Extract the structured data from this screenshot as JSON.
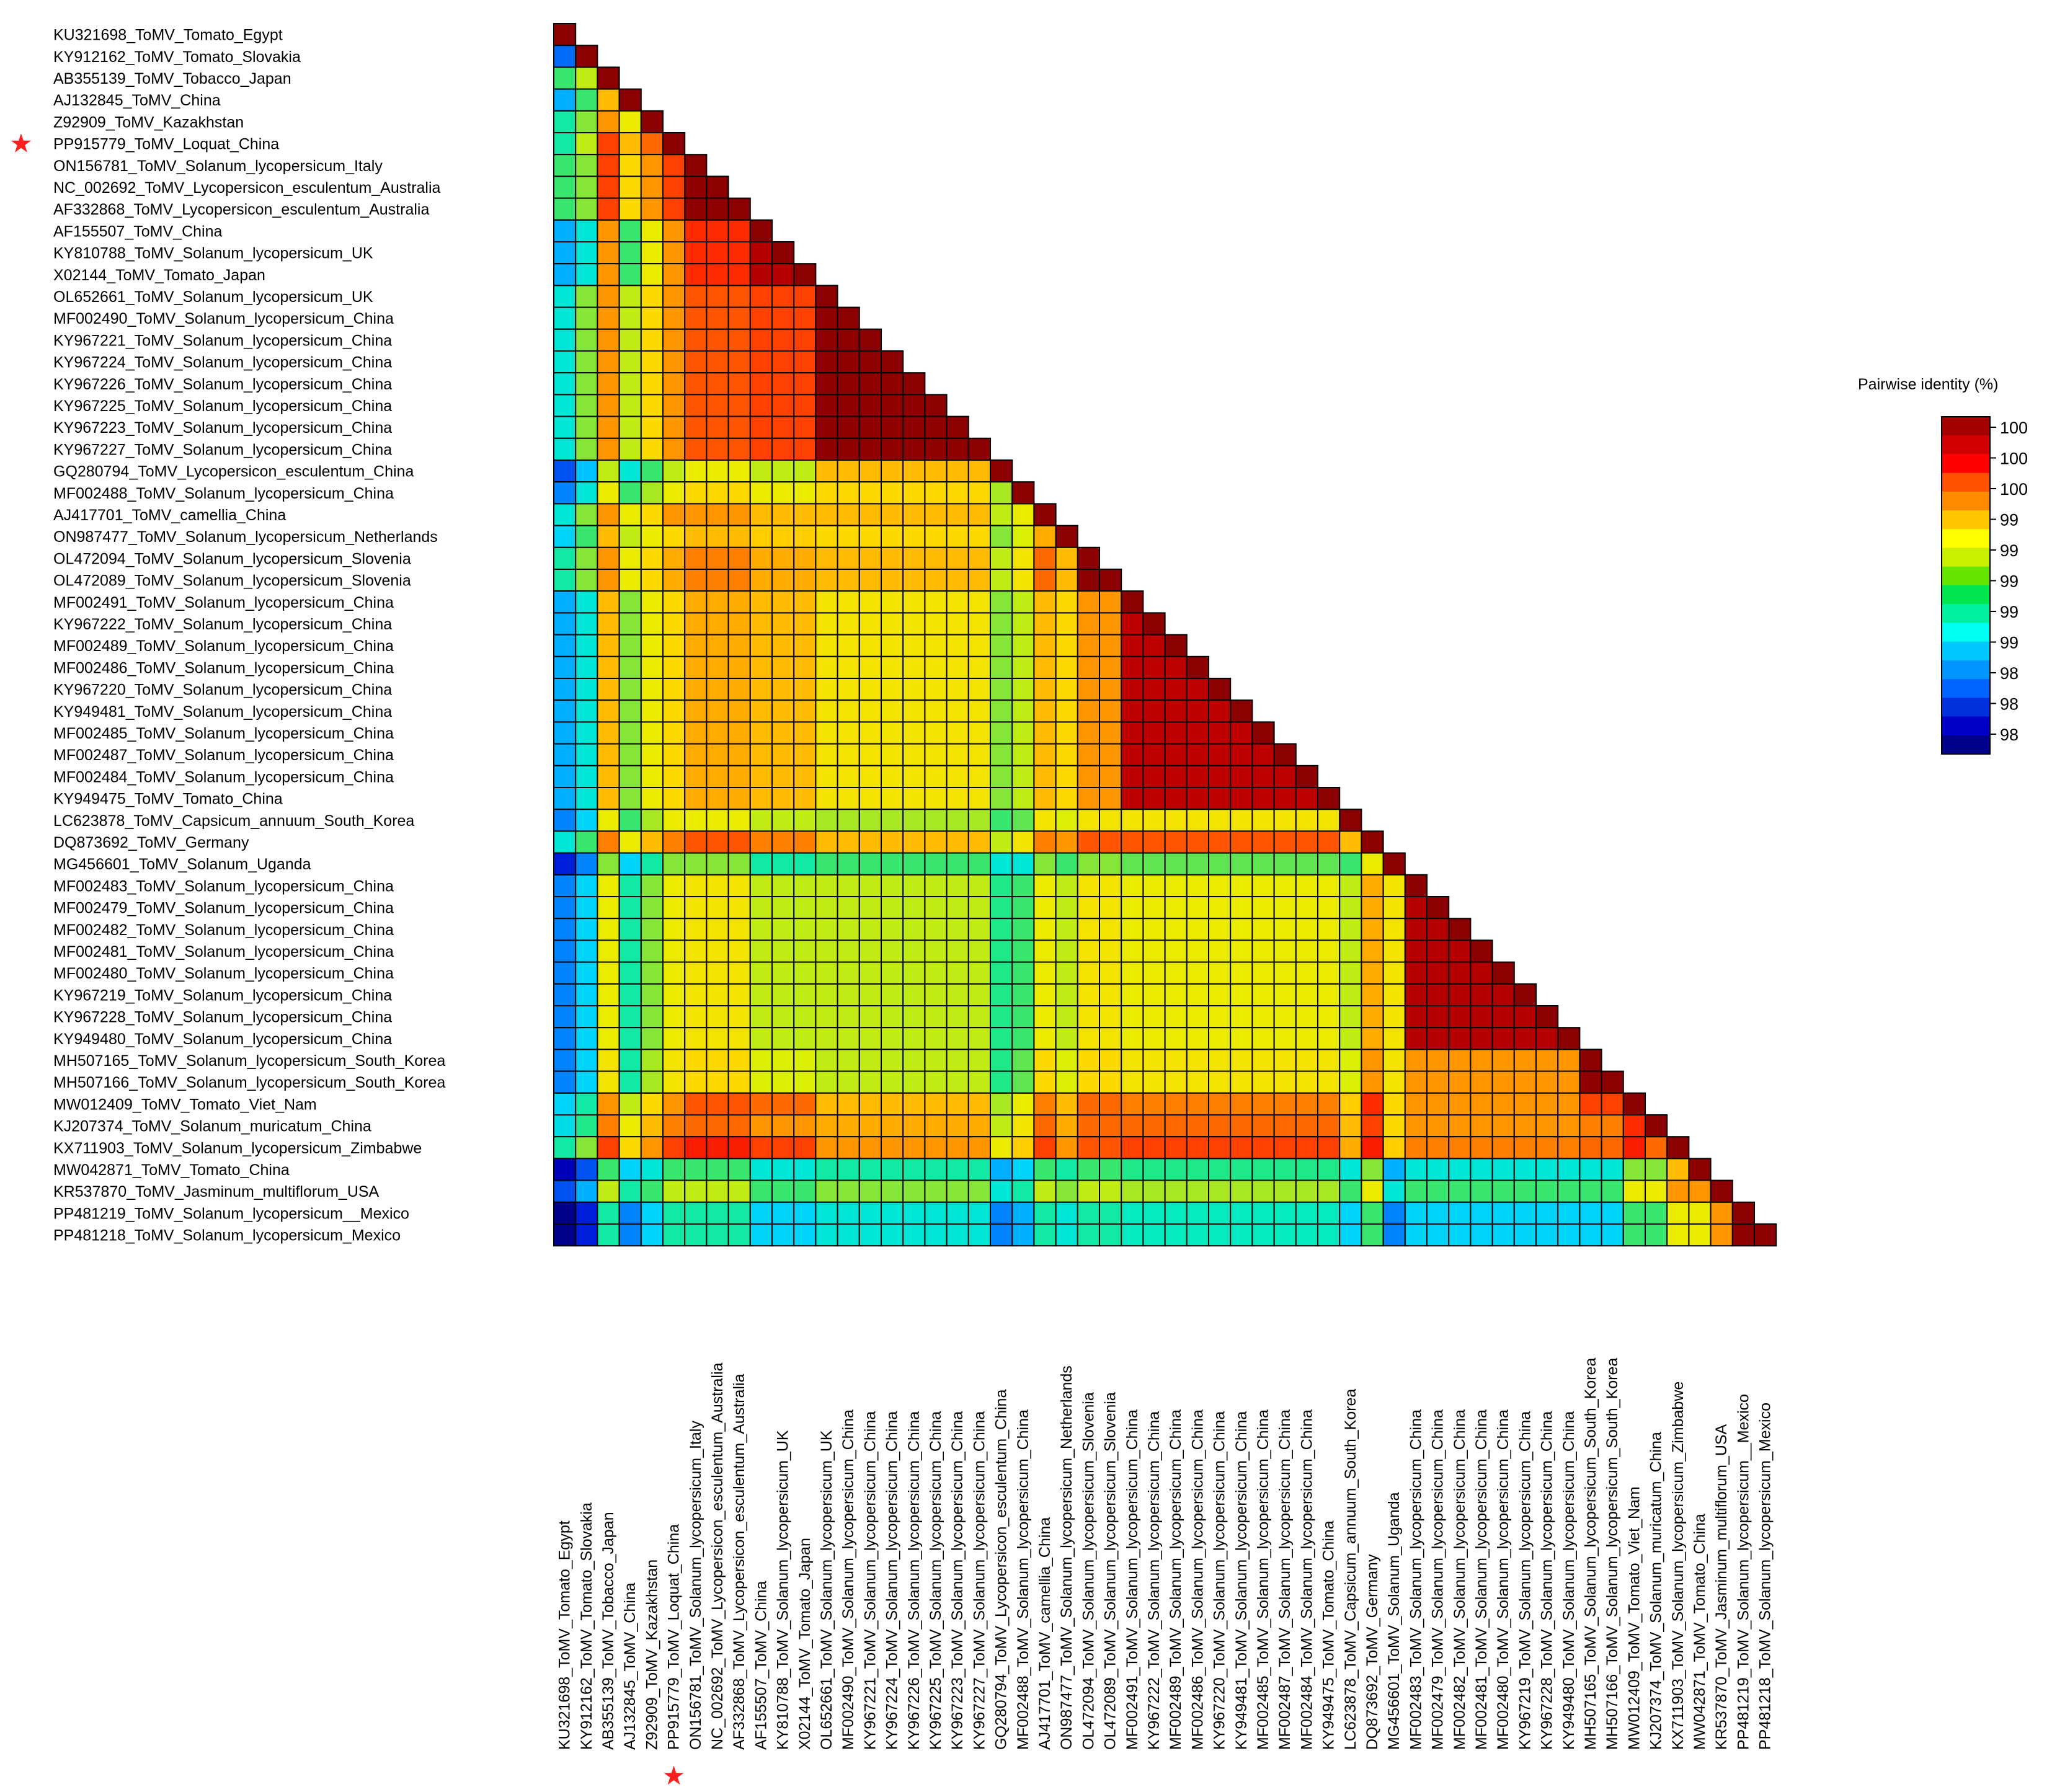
{
  "chart_data": {
    "type": "heatmap",
    "title": "",
    "value_label": "Pairwise identity (%)",
    "layout": "lower-triangle",
    "diagonal_value": 100,
    "highlight_marker": "★",
    "highlight_color": "#ff1f1f",
    "highlighted_label_index": 5,
    "labels": [
      "KU321698_ToMV_Tomato_Egypt",
      "KY912162_ToMV_Tomato_Slovakia",
      "AB355139_ToMV_Tobacco_Japan",
      "AJ132845_ToMV_China",
      "Z92909_ToMV_Kazakhstan",
      "PP915779_ToMV_Loquat_China",
      "ON156781_ToMV_Solanum_lycopersicum_Italy",
      "NC_002692_ToMV_Lycopersicon_esculentum_Australia",
      "AF332868_ToMV_Lycopersicon_esculentum_Australia",
      "AF155507_ToMV_China",
      "KY810788_ToMV_Solanum_lycopersicum_UK",
      "X02144_ToMV_Tomato_Japan",
      "OL652661_ToMV_Solanum_lycopersicum_UK",
      "MF002490_ToMV_Solanum_lycopersicum_China",
      "KY967221_ToMV_Solanum_lycopersicum_China",
      "KY967224_ToMV_Solanum_lycopersicum_China",
      "KY967226_ToMV_Solanum_lycopersicum_China",
      "KY967225_ToMV_Solanum_lycopersicum_China",
      "KY967223_ToMV_Solanum_lycopersicum_China",
      "KY967227_ToMV_Solanum_lycopersicum_China",
      "GQ280794_ToMV_Lycopersicon_esculentum_China",
      "MF002488_ToMV_Solanum_lycopersicum_China",
      "AJ417701_ToMV_camellia_China",
      "ON987477_ToMV_Solanum_lycopersicum_Netherlands",
      "OL472094_ToMV_Solanum_lycopersicum_Slovenia",
      "OL472089_ToMV_Solanum_lycopersicum_Slovenia",
      "MF002491_ToMV_Solanum_lycopersicum_China",
      "KY967222_ToMV_Solanum_lycopersicum_China",
      "MF002489_ToMV_Solanum_lycopersicum_China",
      "MF002486_ToMV_Solanum_lycopersicum_China",
      "KY967220_ToMV_Solanum_lycopersicum_China",
      "KY949481_ToMV_Solanum_lycopersicum_China",
      "MF002485_ToMV_Solanum_lycopersicum_China",
      "MF002487_ToMV_Solanum_lycopersicum_China",
      "MF002484_ToMV_Solanum_lycopersicum_China",
      "KY949475_ToMV_Tomato_China",
      "LC623878_ToMV_Capsicum_annuum_South_Korea",
      "DQ873692_ToMV_Germany",
      "MG456601_ToMV_Solanum_Uganda",
      "MF002483_ToMV_Solanum_lycopersicum_China",
      "MF002479_ToMV_Solanum_lycopersicum_China",
      "MF002482_ToMV_Solanum_lycopersicum_China",
      "MF002481_ToMV_Solanum_lycopersicum_China",
      "MF002480_ToMV_Solanum_lycopersicum_China",
      "KY967219_ToMV_Solanum_lycopersicum_China",
      "KY967228_ToMV_Solanum_lycopersicum_China",
      "KY949480_ToMV_Solanum_lycopersicum_China",
      "MH507165_ToMV_Solanum_lycopersicum_South_Korea",
      "MH507166_ToMV_Solanum_lycopersicum_South_Korea",
      "MW012409_ToMV_Tomato_Viet_Nam",
      "KJ207374_ToMV_Solanum_muricatum_China",
      "KX711903_ToMV_Solanum_lycopersicum_Zimbabwe",
      "MW042871_ToMV_Tomato_China",
      "KR537870_ToMV_Jasminum_multiflorum_USA",
      "PP481219_ToMV_Solanum_lycopersicum__Mexico",
      "PP481218_ToMV_Solanum_lycopersicum_Mexico"
    ],
    "groups": [
      0,
      1,
      2,
      3,
      4,
      5,
      6,
      6,
      6,
      7,
      7,
      7,
      8,
      8,
      8,
      8,
      8,
      8,
      8,
      8,
      9,
      10,
      11,
      12,
      13,
      13,
      14,
      14,
      14,
      14,
      14,
      14,
      14,
      14,
      14,
      14,
      15,
      16,
      17,
      18,
      18,
      18,
      18,
      18,
      18,
      18,
      18,
      19,
      19,
      20,
      21,
      22,
      23,
      24,
      25,
      25
    ],
    "group_matrix": [
      [
        100,
        98.15,
        98.7,
        98.3,
        98.6,
        98.6,
        98.7,
        98.3,
        98.5,
        98.1,
        98.2,
        98.5,
        98.4,
        98.6,
        98.3,
        98.2,
        98.5,
        98.0,
        98.2,
        98.2,
        98.4,
        98.45,
        98.6,
        97.9,
        98.1,
        97.8
      ],
      [
        98.15,
        100,
        98.9,
        98.7,
        98.8,
        98.9,
        98.8,
        98.5,
        98.8,
        98.35,
        98.5,
        98.8,
        98.7,
        98.8,
        98.5,
        98.4,
        98.7,
        98.2,
        98.4,
        98.4,
        98.6,
        98.65,
        98.8,
        98.1,
        98.3,
        98.0
      ],
      [
        98.7,
        98.9,
        100,
        99.2,
        99.3,
        99.5,
        99.5,
        99.3,
        99.3,
        98.9,
        99.0,
        99.3,
        99.2,
        99.3,
        99.2,
        99.0,
        99.35,
        98.8,
        99.0,
        99.05,
        99.3,
        99.35,
        99.5,
        98.7,
        98.9,
        98.6
      ],
      [
        98.3,
        98.7,
        99.2,
        100,
        99.0,
        99.2,
        99.1,
        98.7,
        98.9,
        98.5,
        98.7,
        99.0,
        98.9,
        99.0,
        98.8,
        98.7,
        99.0,
        98.4,
        98.6,
        98.6,
        98.9,
        99.0,
        99.1,
        98.4,
        98.6,
        98.2
      ],
      [
        98.6,
        98.8,
        99.3,
        99.0,
        100,
        99.4,
        99.3,
        99.0,
        99.1,
        98.7,
        98.85,
        99.1,
        99.0,
        99.1,
        99.0,
        98.85,
        99.2,
        98.6,
        98.8,
        98.85,
        99.1,
        99.2,
        99.3,
        98.5,
        98.7,
        98.4
      ],
      [
        98.6,
        98.9,
        99.5,
        99.2,
        99.4,
        100,
        99.5,
        99.3,
        99.3,
        98.9,
        99.0,
        99.3,
        99.1,
        99.25,
        99.1,
        99.0,
        99.35,
        98.8,
        99.0,
        99.05,
        99.3,
        99.35,
        99.5,
        98.7,
        98.9,
        98.6
      ],
      [
        98.7,
        98.8,
        99.5,
        99.1,
        99.3,
        99.5,
        99.98,
        99.55,
        99.45,
        99.0,
        99.1,
        99.3,
        99.2,
        99.35,
        99.25,
        99.0,
        99.45,
        98.8,
        99.05,
        99.1,
        99.45,
        99.4,
        99.6,
        98.7,
        98.9,
        98.6
      ],
      [
        98.3,
        98.5,
        99.3,
        98.7,
        99.0,
        99.3,
        99.55,
        99.85,
        99.5,
        98.9,
        99.0,
        99.2,
        99.15,
        99.25,
        99.2,
        98.9,
        99.35,
        98.6,
        98.9,
        98.95,
        99.4,
        99.3,
        99.5,
        98.5,
        98.7,
        98.4
      ],
      [
        98.5,
        98.8,
        99.3,
        98.9,
        99.1,
        99.3,
        99.45,
        99.5,
        99.98,
        99.2,
        99.1,
        99.2,
        99.1,
        99.2,
        99.05,
        98.85,
        99.2,
        98.7,
        98.9,
        98.9,
        99.2,
        99.25,
        99.3,
        98.6,
        98.8,
        98.5
      ],
      [
        98.1,
        98.35,
        98.9,
        98.5,
        98.7,
        98.9,
        99.0,
        98.9,
        99.2,
        100,
        98.85,
        98.9,
        98.8,
        98.9,
        98.8,
        98.7,
        98.9,
        98.5,
        98.65,
        98.65,
        98.85,
        98.9,
        99.0,
        98.3,
        98.5,
        98.2
      ],
      [
        98.2,
        98.5,
        99.0,
        98.7,
        98.85,
        99.0,
        99.1,
        99.0,
        99.1,
        98.85,
        100,
        99.0,
        98.95,
        99.05,
        98.9,
        98.75,
        99.05,
        98.5,
        98.7,
        98.75,
        99.0,
        99.05,
        99.15,
        98.4,
        98.6,
        98.3
      ],
      [
        98.5,
        98.8,
        99.3,
        99.0,
        99.1,
        99.3,
        99.3,
        99.2,
        99.2,
        98.9,
        99.0,
        100,
        99.25,
        99.4,
        99.2,
        99.05,
        99.35,
        98.8,
        99.0,
        99.1,
        99.35,
        99.4,
        99.5,
        98.7,
        98.9,
        98.6
      ],
      [
        98.4,
        98.7,
        99.2,
        98.9,
        99.0,
        99.1,
        99.2,
        99.15,
        99.1,
        98.8,
        98.95,
        99.25,
        100,
        99.2,
        99.1,
        98.95,
        99.3,
        98.7,
        98.9,
        98.95,
        99.2,
        99.25,
        99.3,
        98.6,
        98.8,
        98.5
      ],
      [
        98.6,
        98.8,
        99.3,
        99.0,
        99.1,
        99.25,
        99.35,
        99.25,
        99.2,
        98.9,
        99.05,
        99.4,
        99.2,
        100,
        99.3,
        99.05,
        99.45,
        98.8,
        99.05,
        99.1,
        99.4,
        99.4,
        99.45,
        98.7,
        98.9,
        98.6
      ],
      [
        98.3,
        98.5,
        99.2,
        98.8,
        99.0,
        99.1,
        99.25,
        99.2,
        99.05,
        98.8,
        98.9,
        99.2,
        99.1,
        99.3,
        99.82,
        99.05,
        99.45,
        98.75,
        99.0,
        99.05,
        99.35,
        99.4,
        99.5,
        98.65,
        98.85,
        98.55
      ],
      [
        98.2,
        98.4,
        99.0,
        98.7,
        98.85,
        99.0,
        99.0,
        98.9,
        98.85,
        98.7,
        98.75,
        99.05,
        98.95,
        99.05,
        99.05,
        100,
        99.2,
        98.7,
        98.9,
        98.95,
        99.15,
        99.2,
        99.25,
        98.5,
        98.7,
        98.4
      ],
      [
        98.5,
        98.7,
        99.35,
        99.0,
        99.2,
        99.35,
        99.45,
        99.35,
        99.2,
        98.9,
        99.05,
        99.35,
        99.3,
        99.45,
        99.45,
        99.2,
        100,
        99.0,
        99.25,
        99.3,
        99.55,
        99.5,
        99.6,
        98.8,
        99.0,
        98.7
      ],
      [
        98.0,
        98.2,
        98.8,
        98.4,
        98.6,
        98.8,
        98.8,
        98.6,
        98.7,
        98.5,
        98.5,
        98.8,
        98.7,
        98.8,
        98.75,
        98.7,
        99.0,
        100,
        99.05,
        99.05,
        99.1,
        99.1,
        99.15,
        98.3,
        98.5,
        98.2
      ],
      [
        98.2,
        98.4,
        99.0,
        98.6,
        98.8,
        99.0,
        99.05,
        98.9,
        98.9,
        98.65,
        98.7,
        99.0,
        98.9,
        99.05,
        99.0,
        98.9,
        99.25,
        99.05,
        99.85,
        99.3,
        99.3,
        99.3,
        99.35,
        98.5,
        98.7,
        98.4
      ],
      [
        98.2,
        98.4,
        99.05,
        98.6,
        98.85,
        99.05,
        99.1,
        98.95,
        98.9,
        98.65,
        98.75,
        99.1,
        98.95,
        99.1,
        99.05,
        98.95,
        99.3,
        99.05,
        99.3,
        99.98,
        99.5,
        99.35,
        99.4,
        98.5,
        98.7,
        98.4
      ],
      [
        98.4,
        98.6,
        99.3,
        98.9,
        99.1,
        99.3,
        99.45,
        99.4,
        99.2,
        98.85,
        99.0,
        99.35,
        99.2,
        99.4,
        99.35,
        99.15,
        99.55,
        99.1,
        99.3,
        99.5,
        100,
        99.55,
        99.6,
        98.8,
        99.0,
        98.7
      ],
      [
        98.45,
        98.65,
        99.35,
        99.0,
        99.2,
        99.35,
        99.4,
        99.3,
        99.25,
        98.9,
        99.05,
        99.4,
        99.25,
        99.4,
        99.4,
        99.2,
        99.5,
        99.1,
        99.3,
        99.35,
        99.55,
        100,
        99.4,
        98.8,
        99.0,
        98.7
      ],
      [
        98.6,
        98.8,
        99.5,
        99.1,
        99.3,
        99.5,
        99.6,
        99.5,
        99.3,
        99.0,
        99.15,
        99.5,
        99.3,
        99.45,
        99.5,
        99.25,
        99.6,
        99.15,
        99.35,
        99.4,
        99.6,
        99.4,
        100,
        99.2,
        99.3,
        99.0
      ],
      [
        97.9,
        98.1,
        98.7,
        98.4,
        98.5,
        98.7,
        98.7,
        98.5,
        98.6,
        98.3,
        98.4,
        98.7,
        98.6,
        98.7,
        98.65,
        98.5,
        98.8,
        98.3,
        98.5,
        98.5,
        98.8,
        98.8,
        99.2,
        100,
        99.3,
        99.0
      ],
      [
        98.1,
        98.3,
        98.9,
        98.6,
        98.7,
        98.9,
        98.9,
        98.7,
        98.8,
        98.5,
        98.6,
        98.9,
        98.8,
        98.9,
        98.85,
        98.7,
        99.0,
        98.5,
        98.7,
        98.7,
        99.0,
        99.0,
        99.3,
        99.3,
        100,
        99.3
      ],
      [
        97.8,
        98.0,
        98.6,
        98.2,
        98.4,
        98.6,
        98.6,
        98.4,
        98.5,
        98.2,
        98.3,
        98.6,
        98.5,
        98.6,
        98.55,
        98.4,
        98.7,
        98.2,
        98.4,
        98.4,
        98.7,
        98.7,
        99.0,
        99.0,
        99.3,
        99.98
      ]
    ],
    "color_scale": {
      "min": 97.8,
      "max": 100,
      "colors": [
        "#00008b",
        "#0000cd",
        "#0050f0",
        "#0096ff",
        "#00d2ff",
        "#00ebc8",
        "#28e678",
        "#9be628",
        "#e6f000",
        "#ffd700",
        "#ffa500",
        "#ff6400",
        "#ff2800",
        "#e60000",
        "#b40000",
        "#8b0000"
      ]
    },
    "legend": {
      "title": "Pairwise identity (%)",
      "tick_labels": [
        "100",
        "100",
        "100",
        "99",
        "99",
        "99",
        "99",
        "99",
        "98",
        "98",
        "98"
      ],
      "colors": [
        "#a50000",
        "#d20000",
        "#ff0000",
        "#ff5000",
        "#ff8c00",
        "#ffc800",
        "#ffff00",
        "#c8f000",
        "#64e600",
        "#00e650",
        "#00f0a0",
        "#00fff0",
        "#00c8ff",
        "#0096ff",
        "#0064ff",
        "#0032dc",
        "#0000c8",
        "#00008b"
      ],
      "position": "right"
    }
  }
}
